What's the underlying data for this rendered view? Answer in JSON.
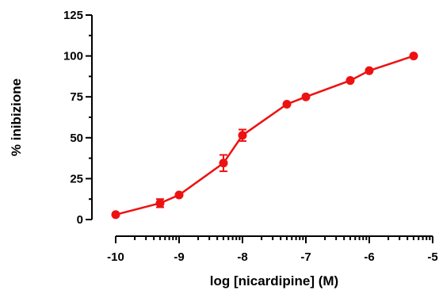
{
  "chart_data": {
    "type": "line",
    "title": "",
    "xlabel": "log [nicardipine] (M)",
    "ylabel": "% inibizione",
    "xlim": [
      -10,
      -5
    ],
    "ylim": [
      0,
      125
    ],
    "x_ticks": [
      -10,
      -9,
      -8,
      -7,
      -6,
      -5
    ],
    "x_tick_labels": [
      "-10",
      "-9",
      "-8",
      "-7",
      "-6",
      "-5"
    ],
    "y_ticks": [
      0,
      25,
      50,
      75,
      100,
      125
    ],
    "y_tick_labels": [
      "0",
      "25",
      "50",
      "75",
      "100",
      "125"
    ],
    "grid": false,
    "legend": "none",
    "color": "#ee1111",
    "series": [
      {
        "x": [
          -10,
          -9.3,
          -9,
          -8.3,
          -8,
          -7.3,
          -7,
          -6.3,
          -6,
          -5.3
        ],
        "y": [
          3,
          10,
          15,
          34.5,
          51.5,
          70.5,
          75,
          85,
          91,
          100
        ],
        "error": [
          0,
          2.5,
          0,
          5,
          3.5,
          0,
          0,
          0,
          0,
          0
        ]
      }
    ]
  }
}
